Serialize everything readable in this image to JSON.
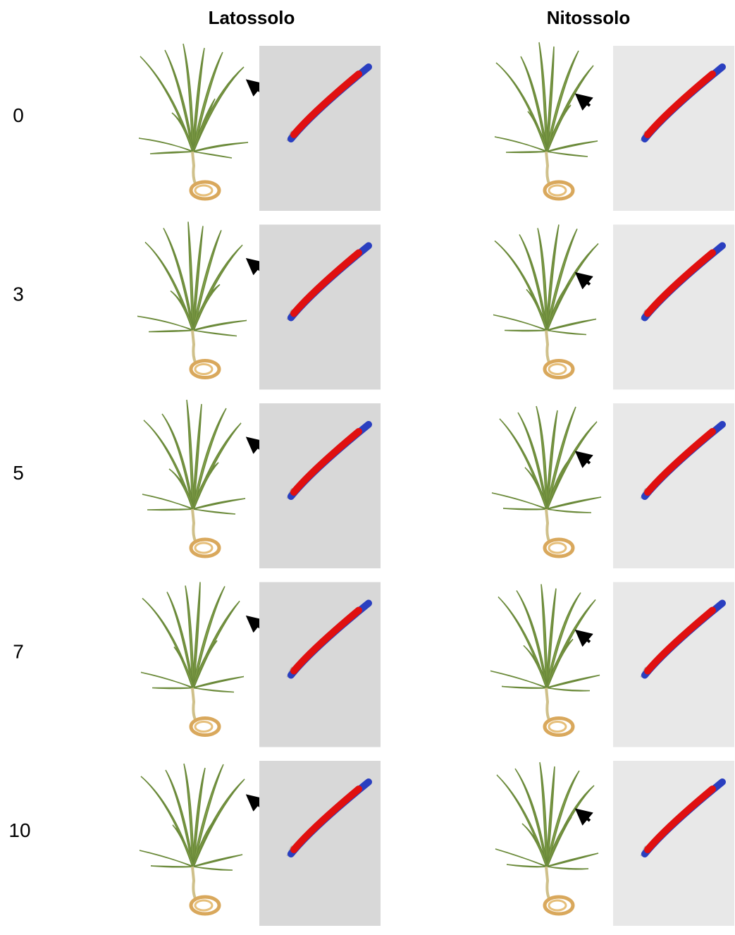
{
  "columns": [
    "Latossolo",
    "Nitossolo"
  ],
  "rows": [
    "0",
    "3",
    "5",
    "7",
    "10"
  ]
}
